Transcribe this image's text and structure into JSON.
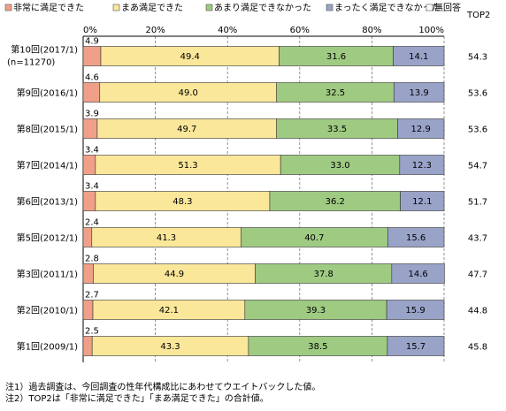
{
  "chart_data": {
    "type": "bar",
    "stacked": true,
    "orientation": "horizontal",
    "percent_axis": [
      0,
      100
    ],
    "x_ticks": [
      "0%",
      "20%",
      "40%",
      "60%",
      "80%",
      "100%"
    ],
    "legend": {
      "placement": "top",
      "entries": [
        "非常に満足できた",
        "まあ満足できた",
        "あまり満足できなかった",
        "まったく満足できなかった",
        "無回答"
      ]
    },
    "categories": [
      [
        "第10回(2017/1)",
        "(n=11270)"
      ],
      [
        "第9回(2016/1)"
      ],
      [
        "第8回(2015/1)"
      ],
      [
        "第7回(2014/1)"
      ],
      [
        "第6回(2013/1)"
      ],
      [
        "第5回(2012/1)"
      ],
      [
        "第3回(2011/1)"
      ],
      [
        "第2回(2010/1)"
      ],
      [
        "第1回(2009/1)"
      ]
    ],
    "series": [
      {
        "name": "非常に満足できた",
        "color": "#f0a088",
        "values": [
          4.9,
          4.6,
          3.9,
          3.4,
          3.4,
          2.4,
          2.8,
          2.7,
          2.5
        ]
      },
      {
        "name": "まあ満足できた",
        "color": "#fae79a",
        "values": [
          49.4,
          49.0,
          49.7,
          51.3,
          48.3,
          41.3,
          44.9,
          42.1,
          43.3
        ]
      },
      {
        "name": "あまり満足できなかった",
        "color": "#9fca82",
        "values": [
          31.6,
          32.5,
          33.5,
          33.0,
          36.2,
          40.7,
          37.8,
          39.3,
          38.5
        ]
      },
      {
        "name": "まったく満足できなかった",
        "color": "#99a3c8",
        "values": [
          14.1,
          13.9,
          12.9,
          12.3,
          12.1,
          15.6,
          14.6,
          15.9,
          15.7
        ]
      },
      {
        "name": "無回答",
        "color": "#ffffff",
        "values": [
          0,
          0,
          0,
          0,
          0,
          0,
          0,
          0,
          0
        ]
      }
    ],
    "top2": {
      "header": "TOP2",
      "values": [
        "54.3",
        "53.6",
        "53.6",
        "54.7",
        "51.7",
        "43.7",
        "47.7",
        "44.8",
        "45.8"
      ]
    }
  },
  "notes": [
    "注1）過去調査は、今回調査の性年代構成比にあわせてウエイトバックした値。",
    "注2）TOP2は「非常に満足できた」「まあ満足できた」の合計値。"
  ]
}
